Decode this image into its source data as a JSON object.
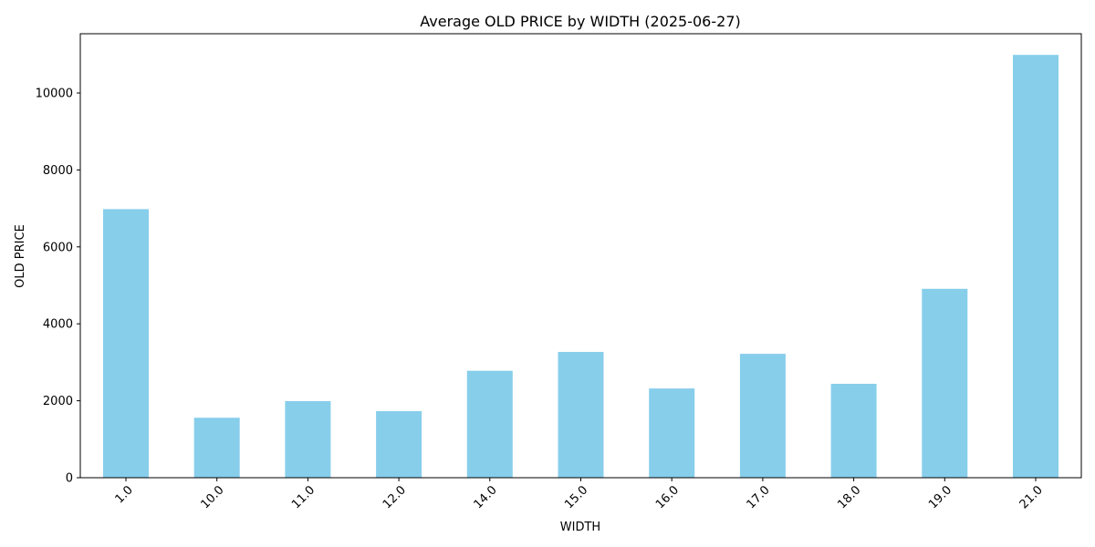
{
  "chart_data": {
    "type": "bar",
    "title": "Average OLD PRICE by WIDTH (2025-06-27)",
    "xlabel": "WIDTH",
    "ylabel": "OLD PRICE",
    "categories": [
      "1.0",
      "10.0",
      "11.0",
      "12.0",
      "14.0",
      "15.0",
      "16.0",
      "17.0",
      "18.0",
      "19.0",
      "21.0"
    ],
    "values": [
      6980,
      1560,
      1990,
      1730,
      2780,
      3270,
      2320,
      3220,
      2440,
      4910,
      10990
    ],
    "ylim": [
      0,
      11540
    ],
    "yticks": [
      0,
      2000,
      4000,
      6000,
      8000,
      10000
    ],
    "bar_color": "#87ceeb",
    "grid": false,
    "legend": "none"
  }
}
